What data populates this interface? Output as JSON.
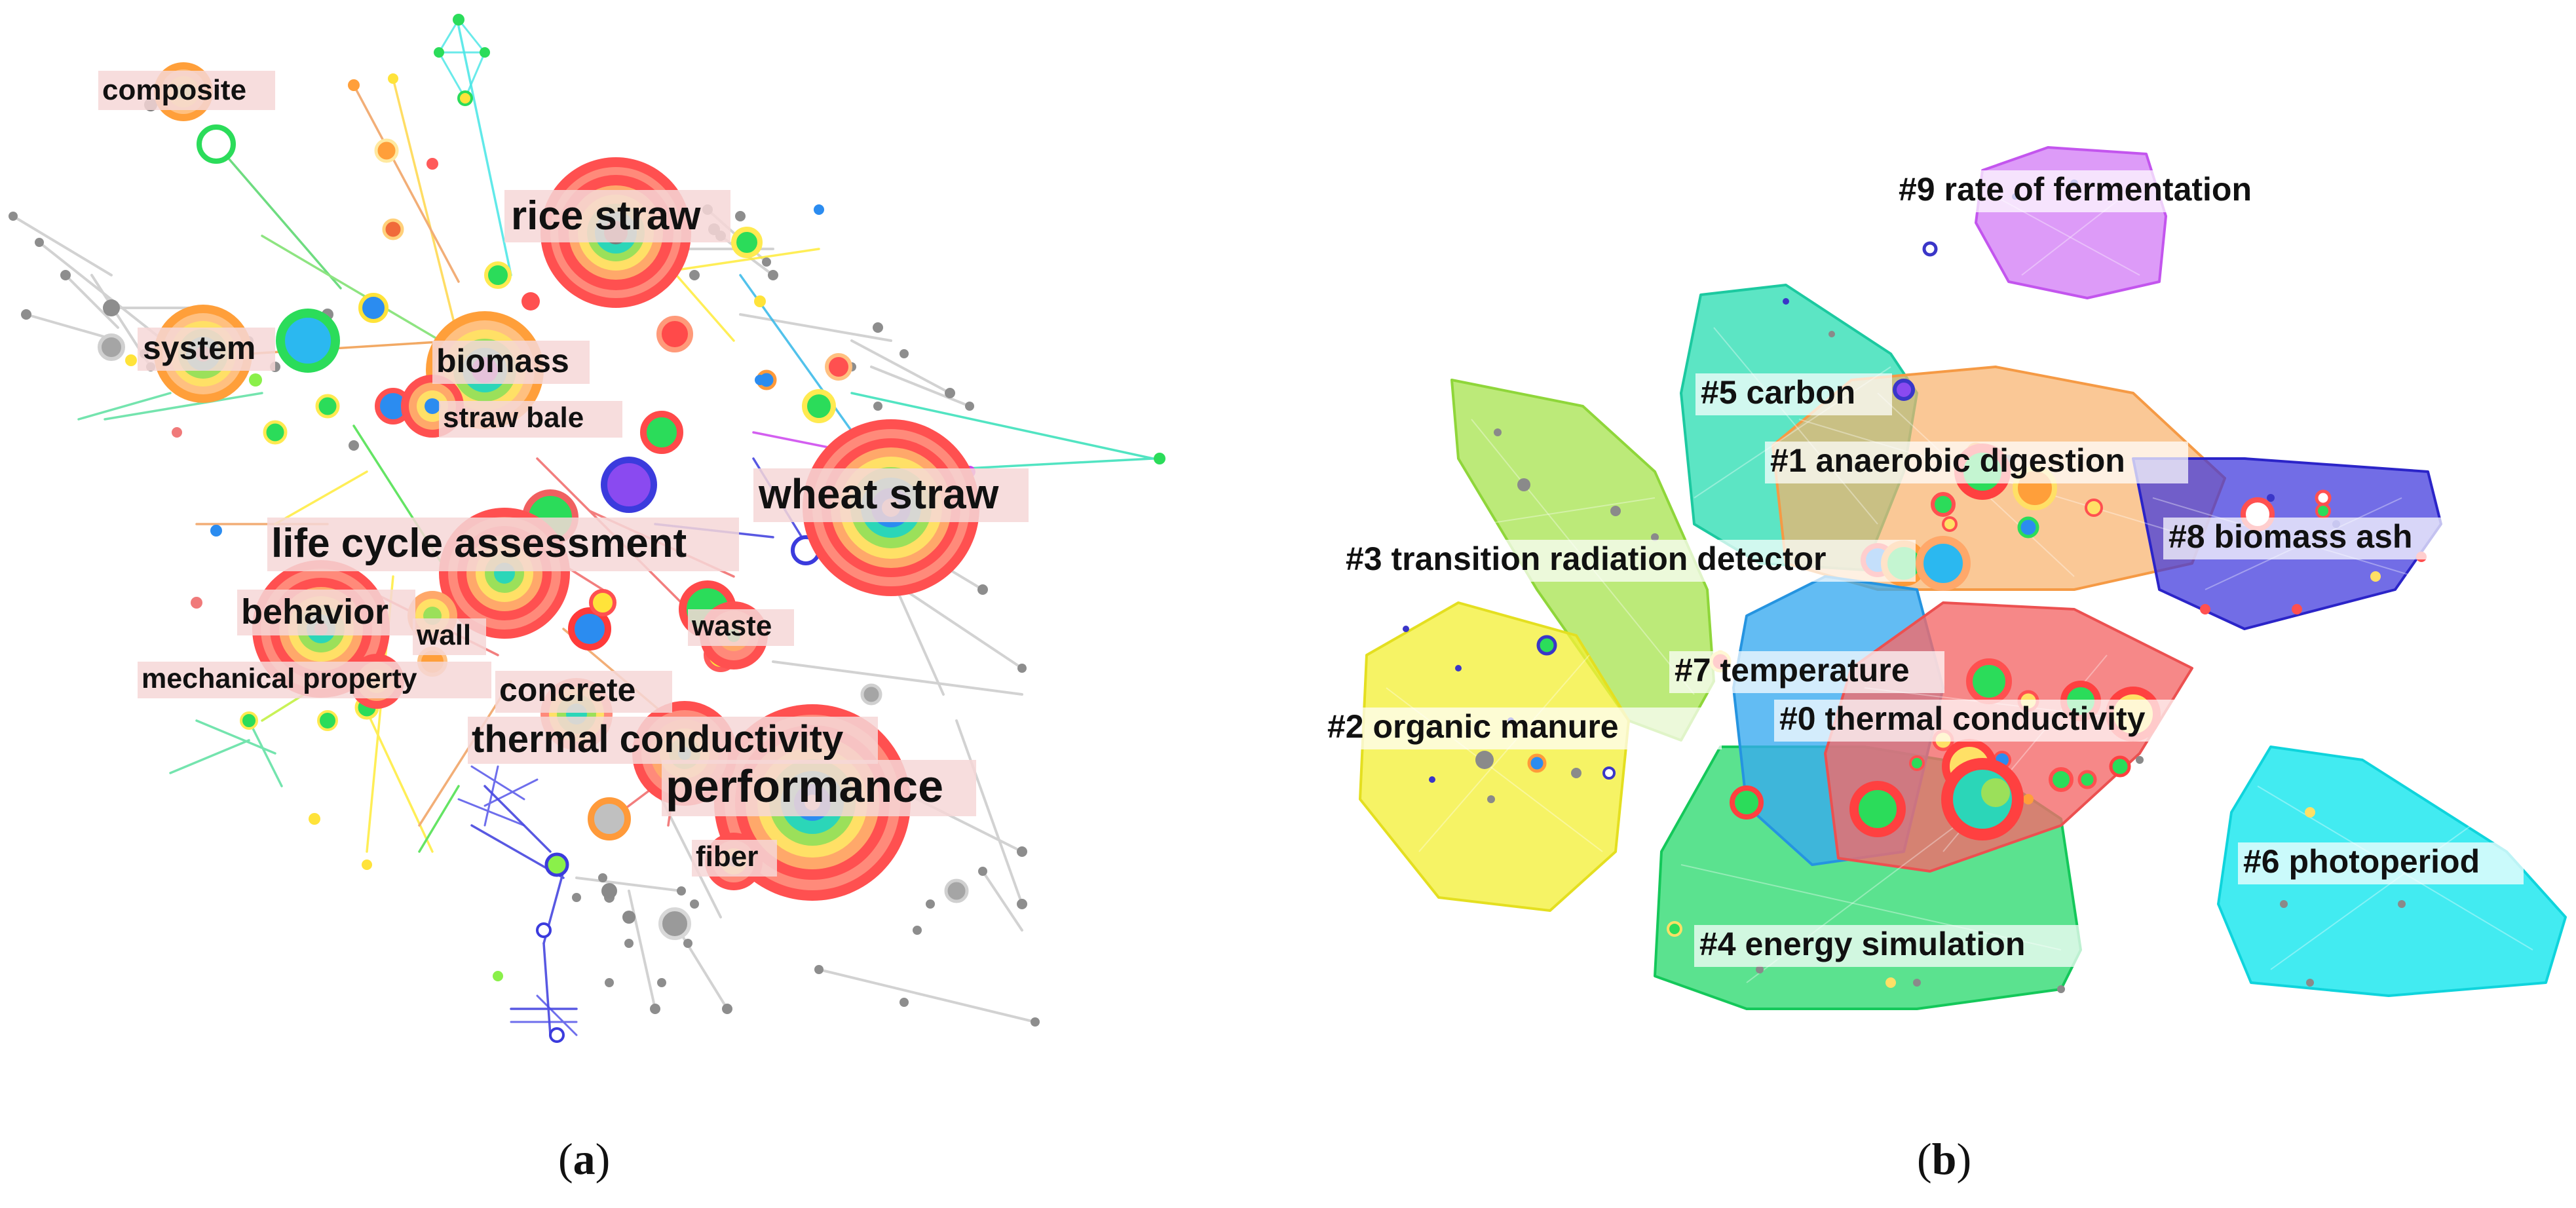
{
  "panel_a": {
    "caption": {
      "open": "(",
      "letter": "a",
      "close": ")"
    },
    "keywords": [
      "composite",
      "rice straw",
      "system",
      "biomass",
      "straw bale",
      "wheat straw",
      "life cycle assessment",
      "behavior",
      "wall",
      "waste",
      "mechanical property",
      "concrete",
      "thermal conductivity",
      "performance",
      "fiber"
    ]
  },
  "panel_b": {
    "caption": {
      "open": "(",
      "letter": "b",
      "close": ")"
    },
    "clusters": [
      {
        "label": "#9 rate of fermentation",
        "color": "#cc55ee"
      },
      {
        "label": "#5 carbon",
        "color": "#1fd6a8"
      },
      {
        "label": "#1 anaerobic digestion",
        "color": "#f5a04a"
      },
      {
        "label": "#8 biomass ash",
        "color": "#3a32d8"
      },
      {
        "label": "#3 transition radiation detector",
        "color": "#9be03a"
      },
      {
        "label": "#7 temperature",
        "color": "#2aa7ee"
      },
      {
        "label": "#0 thermal conductivity",
        "color": "#f06060"
      },
      {
        "label": "#2 organic manure",
        "color": "#f0ec2a"
      },
      {
        "label": "#6 photoperiod",
        "color": "#11e6ee"
      },
      {
        "label": "#4 energy simulation",
        "color": "#1cd86a"
      }
    ]
  }
}
